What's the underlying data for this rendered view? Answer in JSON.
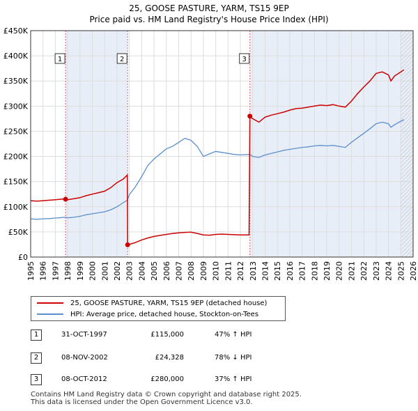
{
  "title_line1": "25, GOOSE PASTURE, YARM, TS15 9EP",
  "title_line2": "Price paid vs. HM Land Registry's House Price Index (HPI)",
  "colors": {
    "property": "#cc0000",
    "hpi": "#5b8fcc",
    "forecast_hatch": "#cccccc",
    "grid": "#dddddd",
    "marker_line": "#e06060",
    "shade": "#e8eef8"
  },
  "chart_data": {
    "type": "line",
    "title": "Price paid vs. HM Land Registry's House Price Index (HPI)",
    "xlim": [
      1995,
      2026
    ],
    "ylim": [
      0,
      450000
    ],
    "yticks": [
      0,
      50000,
      100000,
      150000,
      200000,
      250000,
      300000,
      350000,
      400000,
      450000
    ],
    "ytick_labels": [
      "£0",
      "£50K",
      "£100K",
      "£150K",
      "£200K",
      "£250K",
      "£300K",
      "£350K",
      "£400K",
      "£450K"
    ],
    "xticks": [
      1995,
      1996,
      1997,
      1998,
      1999,
      2000,
      2001,
      2002,
      2003,
      2004,
      2005,
      2006,
      2007,
      2008,
      2009,
      2010,
      2011,
      2012,
      2013,
      2014,
      2015,
      2016,
      2017,
      2018,
      2019,
      2020,
      2021,
      2022,
      2023,
      2024,
      2025,
      2026
    ],
    "forecast_from": 2025.0,
    "series": [
      {
        "name": "25, GOOSE PASTURE, YARM, TS15 9EP (detached house)",
        "points": [
          [
            1995.0,
            112000
          ],
          [
            1995.5,
            111000
          ],
          [
            1996.0,
            112000
          ],
          [
            1996.5,
            113000
          ],
          [
            1997.0,
            114000
          ],
          [
            1997.5,
            115000
          ],
          [
            1997.83,
            115000
          ],
          [
            1998.0,
            114000
          ],
          [
            1998.5,
            116000
          ],
          [
            1999.0,
            118000
          ],
          [
            1999.5,
            122000
          ],
          [
            2000.0,
            125000
          ],
          [
            2000.5,
            128000
          ],
          [
            2001.0,
            131000
          ],
          [
            2001.5,
            138000
          ],
          [
            2002.0,
            148000
          ],
          [
            2002.5,
            155000
          ],
          [
            2002.84,
            163000
          ],
          [
            2002.86,
            24328
          ],
          [
            2003.0,
            25000
          ],
          [
            2003.5,
            29000
          ],
          [
            2004.0,
            34000
          ],
          [
            2004.5,
            38000
          ],
          [
            2005.0,
            41000
          ],
          [
            2005.5,
            43000
          ],
          [
            2006.0,
            45000
          ],
          [
            2006.5,
            47000
          ],
          [
            2007.0,
            48000
          ],
          [
            2007.5,
            49000
          ],
          [
            2008.0,
            49500
          ],
          [
            2008.5,
            47000
          ],
          [
            2009.0,
            44000
          ],
          [
            2009.5,
            43500
          ],
          [
            2010.0,
            45000
          ],
          [
            2010.5,
            45500
          ],
          [
            2011.0,
            45000
          ],
          [
            2011.5,
            44500
          ],
          [
            2012.0,
            44000
          ],
          [
            2012.7,
            44000
          ],
          [
            2012.77,
            280000
          ],
          [
            2013.0,
            275000
          ],
          [
            2013.5,
            268000
          ],
          [
            2014.0,
            278000
          ],
          [
            2014.5,
            282000
          ],
          [
            2015.0,
            285000
          ],
          [
            2015.5,
            288000
          ],
          [
            2016.0,
            292000
          ],
          [
            2016.5,
            295000
          ],
          [
            2017.0,
            296000
          ],
          [
            2017.5,
            298000
          ],
          [
            2018.0,
            300000
          ],
          [
            2018.5,
            302000
          ],
          [
            2019.0,
            301000
          ],
          [
            2019.5,
            303000
          ],
          [
            2020.0,
            300000
          ],
          [
            2020.5,
            298000
          ],
          [
            2021.0,
            310000
          ],
          [
            2021.5,
            325000
          ],
          [
            2022.0,
            338000
          ],
          [
            2022.5,
            350000
          ],
          [
            2023.0,
            365000
          ],
          [
            2023.5,
            368000
          ],
          [
            2024.0,
            362000
          ],
          [
            2024.2,
            350000
          ],
          [
            2024.5,
            360000
          ],
          [
            2025.0,
            368000
          ],
          [
            2025.25,
            372000
          ]
        ]
      },
      {
        "name": "HPI: Average price, detached house, Stockton-on-Tees",
        "points": [
          [
            1995.0,
            76000
          ],
          [
            1995.5,
            75000
          ],
          [
            1996.0,
            76000
          ],
          [
            1996.5,
            76500
          ],
          [
            1997.0,
            77500
          ],
          [
            1997.5,
            78500
          ],
          [
            1997.83,
            79000
          ],
          [
            1998.0,
            78000
          ],
          [
            1998.5,
            79000
          ],
          [
            1999.0,
            81000
          ],
          [
            1999.5,
            84000
          ],
          [
            2000.0,
            86000
          ],
          [
            2000.5,
            88000
          ],
          [
            2001.0,
            90000
          ],
          [
            2001.5,
            94000
          ],
          [
            2002.0,
            100000
          ],
          [
            2002.5,
            108000
          ],
          [
            2002.84,
            113000
          ],
          [
            2003.0,
            124000
          ],
          [
            2003.5,
            140000
          ],
          [
            2004.0,
            160000
          ],
          [
            2004.5,
            182000
          ],
          [
            2005.0,
            195000
          ],
          [
            2005.5,
            205000
          ],
          [
            2006.0,
            215000
          ],
          [
            2006.5,
            220000
          ],
          [
            2007.0,
            228000
          ],
          [
            2007.5,
            236000
          ],
          [
            2008.0,
            232000
          ],
          [
            2008.5,
            220000
          ],
          [
            2009.0,
            200000
          ],
          [
            2009.5,
            205000
          ],
          [
            2010.0,
            210000
          ],
          [
            2010.5,
            208000
          ],
          [
            2011.0,
            206000
          ],
          [
            2011.5,
            204000
          ],
          [
            2012.0,
            203000
          ],
          [
            2012.77,
            204000
          ],
          [
            2013.0,
            200000
          ],
          [
            2013.5,
            198000
          ],
          [
            2014.0,
            203000
          ],
          [
            2014.5,
            206000
          ],
          [
            2015.0,
            209000
          ],
          [
            2015.5,
            212000
          ],
          [
            2016.0,
            214000
          ],
          [
            2016.5,
            216000
          ],
          [
            2017.0,
            218000
          ],
          [
            2017.5,
            219000
          ],
          [
            2018.0,
            221000
          ],
          [
            2018.5,
            222000
          ],
          [
            2019.0,
            221000
          ],
          [
            2019.5,
            222000
          ],
          [
            2020.0,
            220000
          ],
          [
            2020.5,
            218000
          ],
          [
            2021.0,
            228000
          ],
          [
            2021.5,
            237000
          ],
          [
            2022.0,
            246000
          ],
          [
            2022.5,
            255000
          ],
          [
            2023.0,
            265000
          ],
          [
            2023.5,
            268000
          ],
          [
            2024.0,
            265000
          ],
          [
            2024.2,
            258000
          ],
          [
            2024.5,
            263000
          ],
          [
            2025.0,
            270000
          ],
          [
            2025.25,
            273000
          ]
        ]
      }
    ],
    "sales": [
      {
        "label": "1",
        "x": 1997.83,
        "y": 115000
      },
      {
        "label": "2",
        "x": 2002.86,
        "y": 24328
      },
      {
        "label": "3",
        "x": 2012.77,
        "y": 280000
      }
    ],
    "shaded_ranges": [
      [
        1997.83,
        2002.86
      ],
      [
        2012.77,
        2026
      ]
    ]
  },
  "legend": {
    "property_label": "25, GOOSE PASTURE, YARM, TS15 9EP (detached house)",
    "hpi_label": "HPI: Average price, detached house, Stockton-on-Tees"
  },
  "transactions": [
    {
      "num": "1",
      "date": "31-OCT-1997",
      "price": "£115,000",
      "hpi": "47% ↑ HPI"
    },
    {
      "num": "2",
      "date": "08-NOV-2002",
      "price": "£24,328",
      "hpi": "78% ↓ HPI"
    },
    {
      "num": "3",
      "date": "08-OCT-2012",
      "price": "£280,000",
      "hpi": "37% ↑ HPI"
    }
  ],
  "footer_line1": "Contains HM Land Registry data © Crown copyright and database right 2025.",
  "footer_line2": "This data is licensed under the Open Government Licence v3.0."
}
